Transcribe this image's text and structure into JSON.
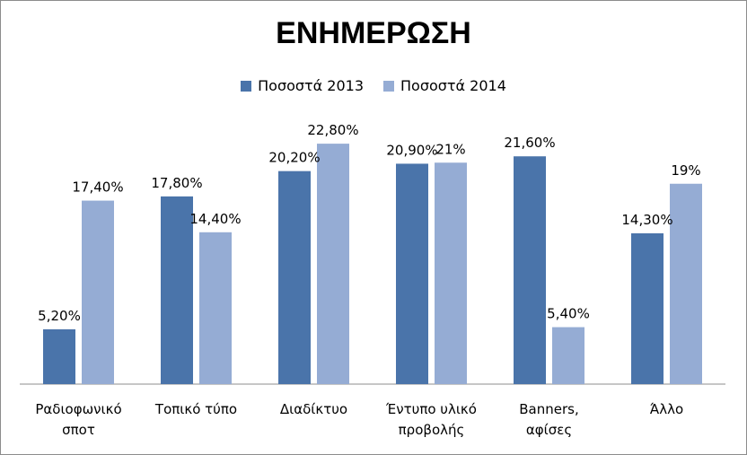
{
  "chart_data": {
    "type": "bar",
    "title": "ΕΝΗΜΕΡΩΣΗ",
    "categories": [
      [
        "Ραδιοφωνικό",
        "σποτ"
      ],
      [
        "Τοπικό τύπο"
      ],
      [
        "Διαδίκτυο"
      ],
      [
        "Έντυπο υλικό",
        "προβολής"
      ],
      [
        "Banners,",
        "αφίσες"
      ],
      [
        "Άλλο"
      ]
    ],
    "series": [
      {
        "name": "Ποσοστά 2013",
        "color": "#4a74aa",
        "values": [
          5.2,
          17.8,
          20.2,
          20.9,
          21.6,
          14.3
        ],
        "labels": [
          "5,20%",
          "17,80%",
          "20,20%",
          "20,90%",
          "21,60%",
          "14,30%"
        ]
      },
      {
        "name": "Ποσοστά 2014",
        "color": "#95acd4",
        "values": [
          17.4,
          14.4,
          22.8,
          21.0,
          5.4,
          19.0
        ],
        "labels": [
          "17,40%",
          "14,40%",
          "22,80%",
          "21%",
          "5,40%",
          "19%"
        ]
      }
    ],
    "ylim": [
      0,
      25
    ],
    "xlabel": "",
    "ylabel": "",
    "grid": false,
    "legend": "top"
  }
}
